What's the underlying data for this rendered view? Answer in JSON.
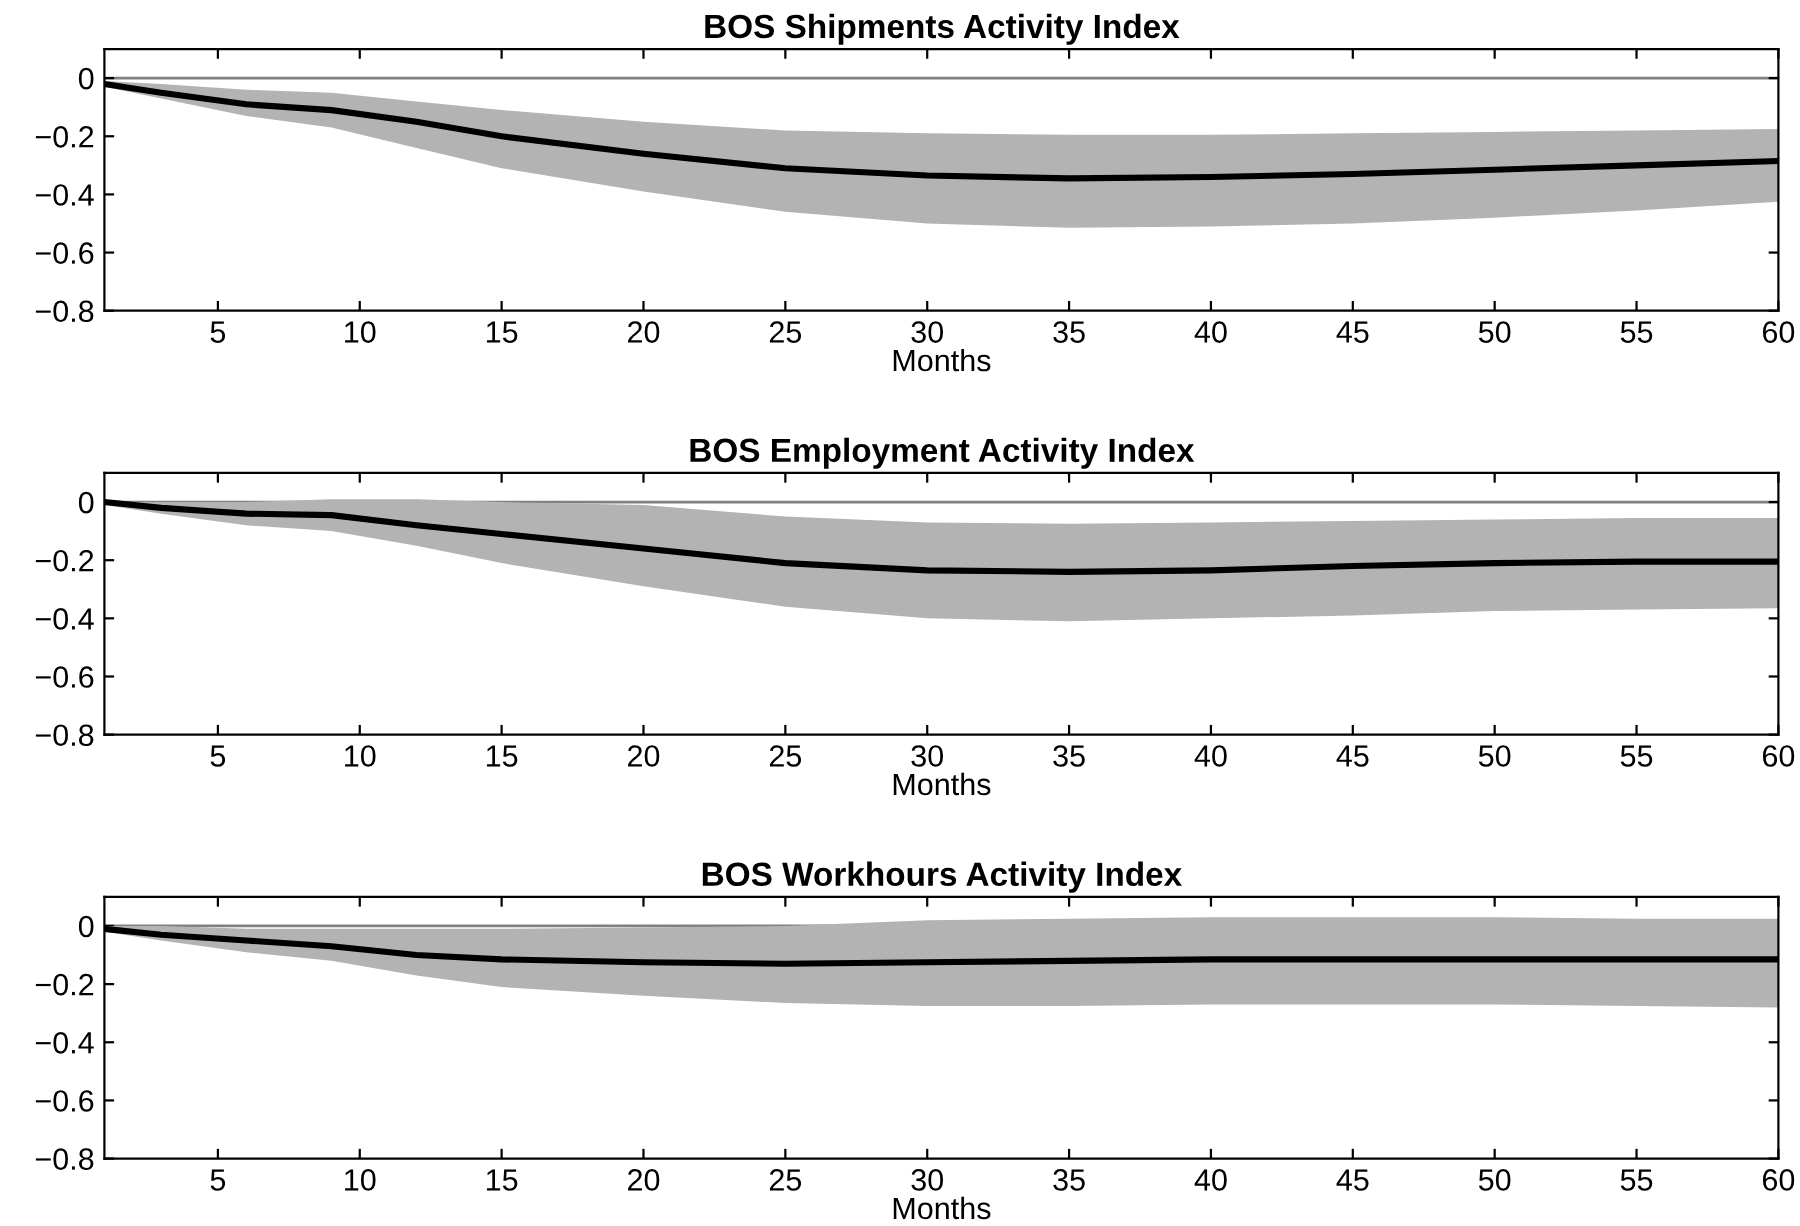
{
  "chart_data": [
    {
      "type": "line",
      "title": "BOS Shipments Activity Index",
      "xlabel": "Months",
      "xlim": [
        1,
        60
      ],
      "xticks": [
        5,
        10,
        15,
        20,
        25,
        30,
        35,
        40,
        45,
        50,
        55,
        60
      ],
      "ylim": [
        -0.8,
        0.1
      ],
      "yticks": [
        {
          "value": -0.8,
          "label": "−0.8"
        },
        {
          "value": -0.6,
          "label": "−0.6"
        },
        {
          "value": -0.4,
          "label": "−0.4"
        },
        {
          "value": -0.2,
          "label": "−0.2"
        },
        0
      ],
      "grid": false,
      "x": [
        1,
        3,
        6,
        9,
        12,
        15,
        20,
        25,
        30,
        35,
        40,
        45,
        50,
        55,
        60
      ],
      "series": [
        {
          "color": "#000000",
          "values": [
            -0.02,
            -0.05,
            -0.09,
            -0.11,
            -0.15,
            -0.2,
            -0.26,
            -0.31,
            -0.335,
            -0.345,
            -0.34,
            -0.33,
            -0.315,
            -0.3,
            -0.285
          ],
          "upper": [
            -0.01,
            -0.02,
            -0.04,
            -0.05,
            -0.08,
            -0.11,
            -0.15,
            -0.18,
            -0.19,
            -0.195,
            -0.195,
            -0.19,
            -0.185,
            -0.18,
            -0.175
          ],
          "lower": [
            -0.03,
            -0.07,
            -0.13,
            -0.17,
            -0.24,
            -0.31,
            -0.39,
            -0.46,
            -0.5,
            -0.515,
            -0.51,
            -0.5,
            -0.48,
            -0.455,
            -0.425
          ]
        }
      ],
      "ref_lines": [
        {
          "axis": "y",
          "value": 0,
          "color": "#808080"
        }
      ]
    },
    {
      "type": "line",
      "title": "BOS Employment Activity Index",
      "xlabel": "Months",
      "xlim": [
        1,
        60
      ],
      "xticks": [
        5,
        10,
        15,
        20,
        25,
        30,
        35,
        40,
        45,
        50,
        55,
        60
      ],
      "ylim": [
        -0.8,
        0.1
      ],
      "yticks": [
        {
          "value": -0.8,
          "label": "−0.8"
        },
        {
          "value": -0.6,
          "label": "−0.6"
        },
        {
          "value": -0.4,
          "label": "−0.4"
        },
        {
          "value": -0.2,
          "label": "−0.2"
        },
        0
      ],
      "grid": false,
      "x": [
        1,
        3,
        6,
        9,
        12,
        15,
        20,
        25,
        30,
        35,
        40,
        45,
        50,
        55,
        60
      ],
      "series": [
        {
          "color": "#000000",
          "values": [
            0,
            -0.02,
            -0.04,
            -0.045,
            -0.08,
            -0.11,
            -0.16,
            -0.21,
            -0.235,
            -0.24,
            -0.235,
            -0.22,
            -0.21,
            -0.205,
            -0.205
          ],
          "upper": [
            0,
            0,
            0,
            0.01,
            0.01,
            0,
            -0.01,
            -0.05,
            -0.07,
            -0.075,
            -0.07,
            -0.065,
            -0.06,
            -0.055,
            -0.055
          ],
          "lower": [
            -0.01,
            -0.04,
            -0.08,
            -0.1,
            -0.15,
            -0.21,
            -0.29,
            -0.36,
            -0.4,
            -0.41,
            -0.4,
            -0.39,
            -0.375,
            -0.37,
            -0.365
          ]
        }
      ],
      "ref_lines": [
        {
          "axis": "y",
          "value": 0,
          "color": "#808080"
        }
      ]
    },
    {
      "type": "line",
      "title": "BOS Workhours Activity Index",
      "xlabel": "Months",
      "xlim": [
        1,
        60
      ],
      "xticks": [
        5,
        10,
        15,
        20,
        25,
        30,
        35,
        40,
        45,
        50,
        55,
        60
      ],
      "ylim": [
        -0.8,
        0.1
      ],
      "yticks": [
        {
          "value": -0.8,
          "label": "−0.8"
        },
        {
          "value": -0.6,
          "label": "−0.6"
        },
        {
          "value": -0.4,
          "label": "−0.4"
        },
        {
          "value": -0.2,
          "label": "−0.2"
        },
        0
      ],
      "grid": false,
      "x": [
        1,
        3,
        6,
        9,
        12,
        15,
        20,
        25,
        30,
        35,
        40,
        45,
        50,
        55,
        60
      ],
      "series": [
        {
          "color": "#000000",
          "values": [
            -0.01,
            -0.03,
            -0.05,
            -0.07,
            -0.1,
            -0.115,
            -0.125,
            -0.13,
            -0.125,
            -0.12,
            -0.115,
            -0.115,
            -0.115,
            -0.115,
            -0.115
          ],
          "upper": [
            0,
            0,
            -0.01,
            -0.01,
            -0.01,
            -0.01,
            -0.005,
            0,
            0.02,
            0.025,
            0.03,
            0.03,
            0.03,
            0.025,
            0.025
          ],
          "lower": [
            -0.02,
            -0.05,
            -0.09,
            -0.12,
            -0.17,
            -0.21,
            -0.24,
            -0.265,
            -0.275,
            -0.275,
            -0.27,
            -0.27,
            -0.27,
            -0.275,
            -0.28
          ]
        }
      ],
      "ref_lines": [
        {
          "axis": "y",
          "value": 0,
          "color": "#808080"
        }
      ]
    }
  ]
}
